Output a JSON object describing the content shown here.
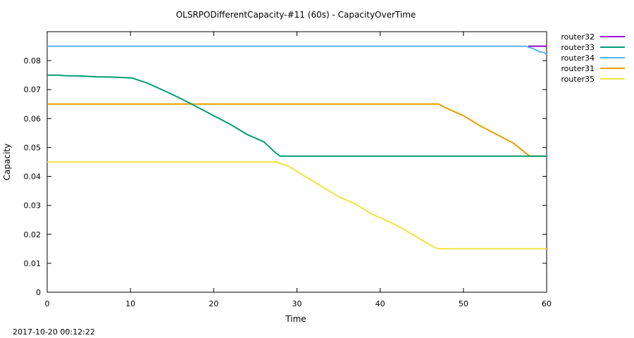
{
  "chart_data": {
    "type": "line",
    "title": "OLSRPODifferentCapacity-#11 (60s) - CapacityOverTime",
    "xlabel": "Time",
    "ylabel": "Capacity",
    "xlim": [
      0,
      60
    ],
    "ylim": [
      0,
      0.09
    ],
    "xticks": [
      "0",
      "10",
      "20",
      "30",
      "40",
      "50",
      "60"
    ],
    "yticks": [
      "0",
      "0.01",
      "0.02",
      "0.03",
      "0.04",
      "0.05",
      "0.06",
      "0.07",
      "0.08"
    ],
    "grid": false,
    "legend_position": "outside-right",
    "series": [
      {
        "name": "router32",
        "color": "#9400d3",
        "points": [
          [
            57.8,
            0.085
          ],
          [
            60,
            0.085
          ]
        ]
      },
      {
        "name": "router33",
        "color": "#009e73",
        "points": [
          [
            0,
            0.075
          ],
          [
            1.5,
            0.075
          ],
          [
            2,
            0.0748
          ],
          [
            4,
            0.0747
          ],
          [
            6,
            0.0744
          ],
          [
            8,
            0.0743
          ],
          [
            10.2,
            0.074
          ],
          [
            12,
            0.0723
          ],
          [
            14,
            0.0697
          ],
          [
            16,
            0.067
          ],
          [
            18,
            0.064
          ],
          [
            20,
            0.061
          ],
          [
            22,
            0.058
          ],
          [
            24,
            0.0545
          ],
          [
            26,
            0.052
          ],
          [
            27.5,
            0.048
          ],
          [
            28,
            0.047
          ],
          [
            60,
            0.047
          ]
        ]
      },
      {
        "name": "router34",
        "color": "#56b4e9",
        "points": [
          [
            0,
            0.085
          ],
          [
            57.5,
            0.085
          ],
          [
            58.5,
            0.084
          ],
          [
            59.2,
            0.083
          ],
          [
            59.7,
            0.0828
          ],
          [
            60,
            0.082
          ]
        ]
      },
      {
        "name": "router31",
        "color": "#e69f00",
        "points": [
          [
            0,
            0.065
          ],
          [
            47,
            0.065
          ],
          [
            48,
            0.0635
          ],
          [
            50,
            0.061
          ],
          [
            52,
            0.0575
          ],
          [
            54,
            0.0545
          ],
          [
            56,
            0.0515
          ],
          [
            57.5,
            0.048
          ],
          [
            58,
            0.047
          ],
          [
            60,
            0.047
          ]
        ]
      },
      {
        "name": "router35",
        "color": "#f0e442",
        "points": [
          [
            0,
            0.045
          ],
          [
            27.5,
            0.045
          ],
          [
            29,
            0.0435
          ],
          [
            31,
            0.04
          ],
          [
            33,
            0.0365
          ],
          [
            35,
            0.033
          ],
          [
            37,
            0.0305
          ],
          [
            39,
            0.027
          ],
          [
            41,
            0.0245
          ],
          [
            43,
            0.0215
          ],
          [
            45,
            0.018
          ],
          [
            46.5,
            0.0155
          ],
          [
            47,
            0.015
          ],
          [
            60,
            0.015
          ]
        ]
      }
    ],
    "footer_timestamp": "2017-10-20 00:12:22"
  }
}
